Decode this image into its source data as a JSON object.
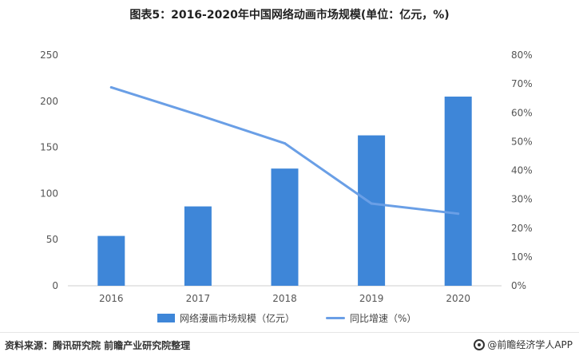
{
  "header": {
    "title": "图表5：2016-2020年中国网络动画市场规模(单位：亿元，%)"
  },
  "footer": {
    "source": "资料来源：腾讯研究院 前瞻产业研究院整理",
    "brand": "@前瞻经济学人APP"
  },
  "colors": {
    "bar": "#3e86d8",
    "line": "#6a9fe6"
  },
  "chart_data": {
    "type": "bar",
    "categories": [
      "2016",
      "2017",
      "2018",
      "2019",
      "2020"
    ],
    "series": [
      {
        "name": "网络漫画市场规模（亿元）",
        "type": "bar",
        "axis": "left",
        "values": [
          54,
          86,
          127,
          163,
          205
        ]
      },
      {
        "name": "同比增速（%）",
        "type": "line",
        "axis": "right",
        "values": [
          68.8,
          59.3,
          49.4,
          28.5,
          25.0
        ]
      }
    ],
    "ylim_left": [
      0,
      250
    ],
    "yticks_left": [
      "0",
      "50",
      "100",
      "150",
      "200",
      "250"
    ],
    "ylim_right": [
      0,
      80
    ],
    "yticks_right": [
      "0%",
      "10%",
      "20%",
      "30%",
      "40%",
      "50%",
      "60%",
      "70%",
      "80%"
    ],
    "grid": false,
    "legend": "bottom"
  }
}
